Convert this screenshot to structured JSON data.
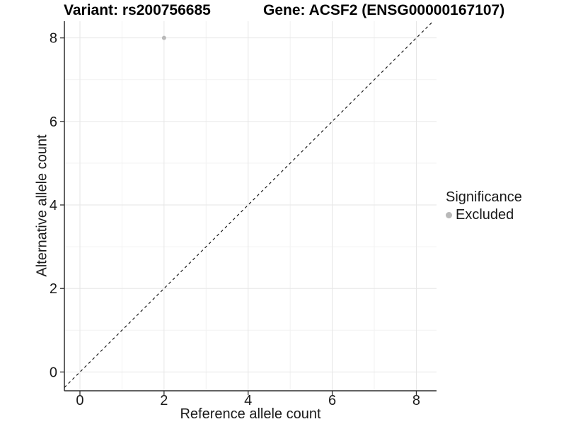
{
  "header": {
    "variant_title": "Variant: rs200756685",
    "gene_title": "Gene: ACSF2 (ENSG00000167107)"
  },
  "chart_data": {
    "type": "scatter",
    "title_left": "Variant: rs200756685",
    "title_right": "Gene: ACSF2 (ENSG00000167107)",
    "xlabel": "Reference allele count",
    "ylabel": "Alternative allele count",
    "x_ticks": [
      0,
      2,
      4,
      6,
      8
    ],
    "y_ticks": [
      0,
      2,
      4,
      6,
      8
    ],
    "xlim": [
      -0.37,
      8.48
    ],
    "ylim": [
      -0.45,
      8.4
    ],
    "grid": {
      "major": true,
      "minor": true
    },
    "points": [
      {
        "x": 2,
        "y": 8,
        "significance": "Excluded"
      }
    ],
    "reference_line": {
      "type": "identity",
      "slope": 1,
      "intercept": 0,
      "style": "dashed"
    },
    "legend": {
      "title": "Significance",
      "position": "right",
      "items": [
        {
          "label": "Excluded",
          "color": "#b9b9b9"
        }
      ]
    }
  },
  "colors": {
    "background": "#ffffff",
    "axis_line": "#2e2e2e",
    "grid_major": "#e6e6e6",
    "grid_minor": "#f2f2f2",
    "tick_text": "#1a1a1a",
    "dashed_line": "#1a1a1a",
    "point": "#b9b9b9"
  }
}
